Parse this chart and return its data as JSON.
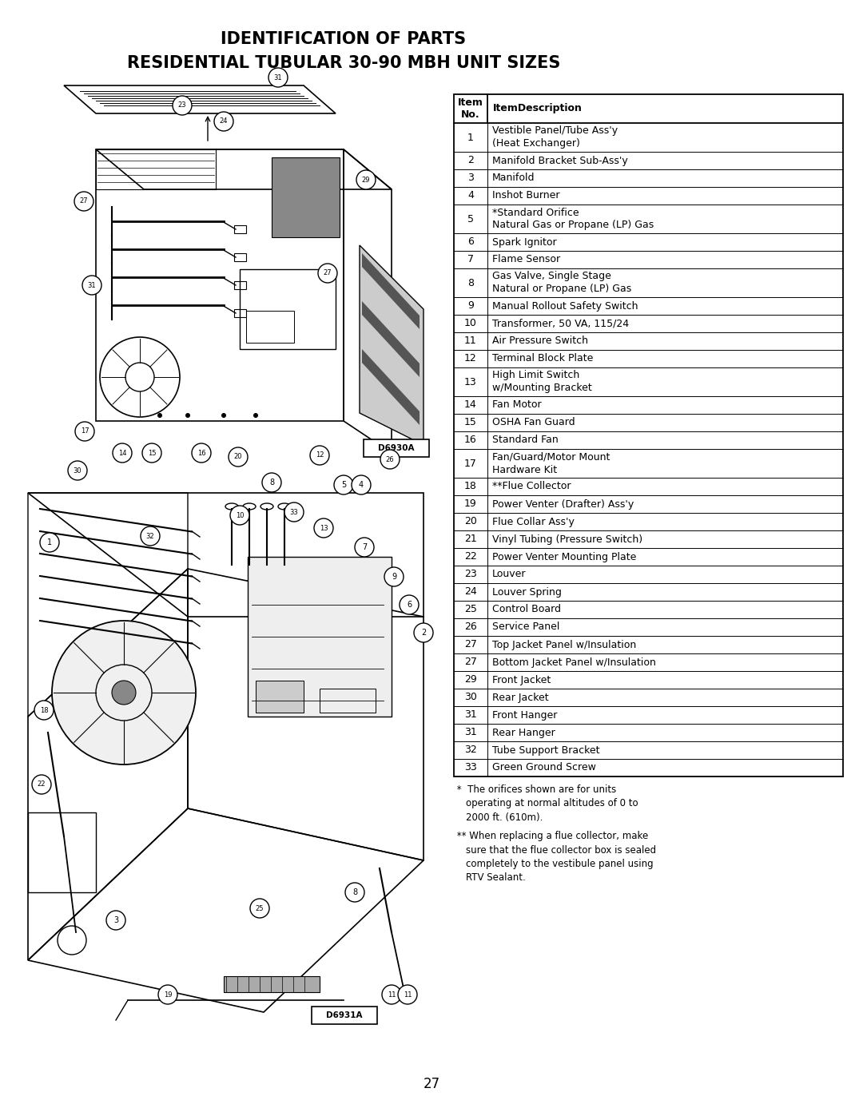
{
  "title_line1": "IDENTIFICATION OF PARTS",
  "title_line2": "RESIDENTIAL TUBULAR 30-90 MBH UNIT SIZES",
  "page_number": "27",
  "table_rows": [
    [
      "1",
      "Vestible Panel/Tube Ass'y\n(Heat Exchanger)"
    ],
    [
      "2",
      "Manifold Bracket Sub-Ass'y"
    ],
    [
      "3",
      "Manifold"
    ],
    [
      "4",
      "Inshot Burner"
    ],
    [
      "5",
      "*Standard Orifice\nNatural Gas or Propane (LP) Gas"
    ],
    [
      "6",
      "Spark Ignitor"
    ],
    [
      "7",
      "Flame Sensor"
    ],
    [
      "8",
      "Gas Valve, Single Stage\nNatural or Propane (LP) Gas"
    ],
    [
      "9",
      "Manual Rollout Safety Switch"
    ],
    [
      "10",
      "Transformer, 50 VA, 115/24"
    ],
    [
      "11",
      "Air Pressure Switch"
    ],
    [
      "12",
      "Terminal Block Plate"
    ],
    [
      "13",
      "High Limit Switch\nw/Mounting Bracket"
    ],
    [
      "14",
      "Fan Motor"
    ],
    [
      "15",
      "OSHA Fan Guard"
    ],
    [
      "16",
      "Standard Fan"
    ],
    [
      "17",
      "Fan/Guard/Motor Mount\nHardware Kit"
    ],
    [
      "18",
      "**Flue Collector"
    ],
    [
      "19",
      "Power Venter (Drafter) Ass'y"
    ],
    [
      "20",
      "Flue Collar Ass'y"
    ],
    [
      "21",
      "Vinyl Tubing (Pressure Switch)"
    ],
    [
      "22",
      "Power Venter Mounting Plate"
    ],
    [
      "23",
      "Louver"
    ],
    [
      "24",
      "Louver Spring"
    ],
    [
      "25",
      "Control Board"
    ],
    [
      "26",
      "Service Panel"
    ],
    [
      "27",
      "Top Jacket Panel w/Insulation"
    ],
    [
      "27",
      "Bottom Jacket Panel w/Insulation"
    ],
    [
      "29",
      "Front Jacket"
    ],
    [
      "30",
      "Rear Jacket"
    ],
    [
      "31",
      "Front Hanger"
    ],
    [
      "31",
      "Rear Hanger"
    ],
    [
      "32",
      "Tube Support Bracket"
    ],
    [
      "33",
      "Green Ground Screw"
    ]
  ],
  "footnote1": " *  The orifices shown are for units\n    operating at normal altitudes of 0 to\n    2000 ft. (610m).",
  "footnote2": " ** When replacing a flue collector, make\n    sure that the flue collector box is sealed\n    completely to the vestibule panel using\n    RTV Sealant.",
  "bg_color": "#ffffff"
}
